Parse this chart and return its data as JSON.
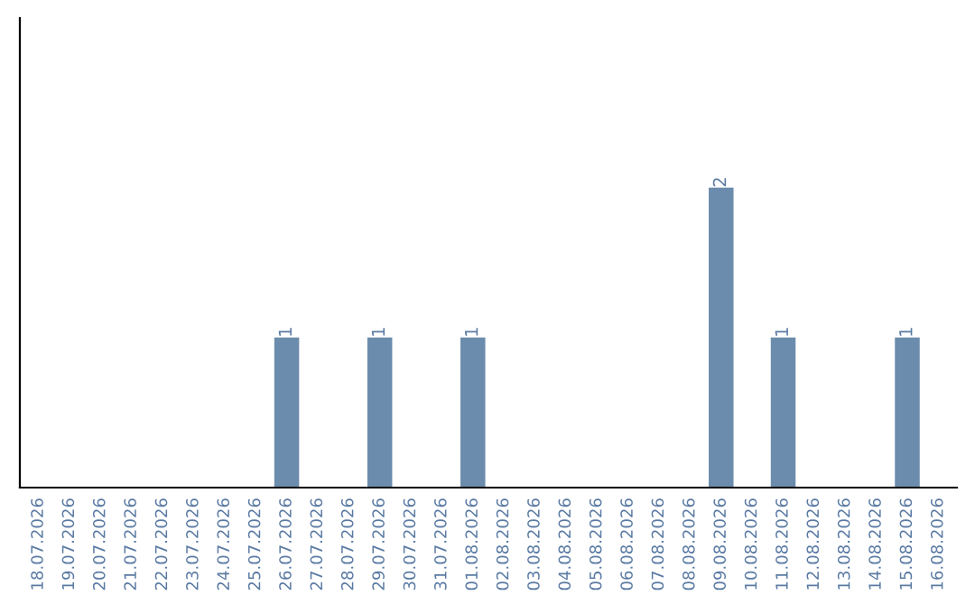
{
  "chart_data": {
    "type": "bar",
    "categories": [
      "18.07.2026",
      "19.07.2026",
      "20.07.2026",
      "21.07.2026",
      "22.07.2026",
      "23.07.2026",
      "24.07.2026",
      "25.07.2026",
      "26.07.2026",
      "27.07.2026",
      "28.07.2026",
      "29.07.2026",
      "30.07.2026",
      "31.07.2026",
      "01.08.2026",
      "02.08.2026",
      "03.08.2026",
      "04.08.2026",
      "05.08.2026",
      "06.08.2026",
      "07.08.2026",
      "08.08.2026",
      "09.08.2026",
      "10.08.2026",
      "11.08.2026",
      "12.08.2026",
      "13.08.2026",
      "14.08.2026",
      "15.08.2026",
      "16.08.2026"
    ],
    "values": [
      0,
      0,
      0,
      0,
      0,
      0,
      0,
      0,
      1,
      0,
      0,
      1,
      0,
      0,
      1,
      0,
      0,
      0,
      0,
      0,
      0,
      0,
      2,
      0,
      1,
      0,
      0,
      0,
      1,
      0
    ],
    "value_labels": [
      null,
      null,
      null,
      null,
      null,
      null,
      null,
      null,
      "1",
      null,
      null,
      "1",
      null,
      null,
      "1",
      null,
      null,
      null,
      null,
      null,
      null,
      null,
      "2",
      null,
      "1",
      null,
      null,
      null,
      "1",
      null
    ],
    "color": "#6b8cac",
    "ylim": [
      0,
      3.13
    ],
    "tick_labels": "x",
    "grid": false
  }
}
